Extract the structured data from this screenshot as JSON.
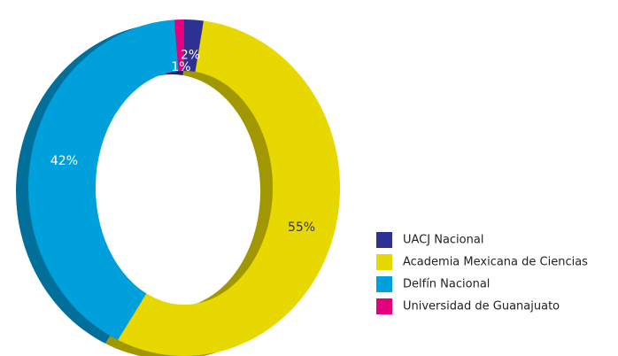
{
  "chart_data": {
    "type": "donut",
    "categories": [
      "UACJ Nacional",
      "Academia Mexicana de Ciencias",
      "Delfín Nacional",
      "Universidad de Guanajuato"
    ],
    "values": [
      2,
      55,
      42,
      1
    ],
    "value_labels": [
      "2%",
      "55%",
      "42%",
      "1%"
    ],
    "colors": [
      "#2e3192",
      "#e6d800",
      "#00a0dc",
      "#e4007c"
    ],
    "legend": "right"
  }
}
